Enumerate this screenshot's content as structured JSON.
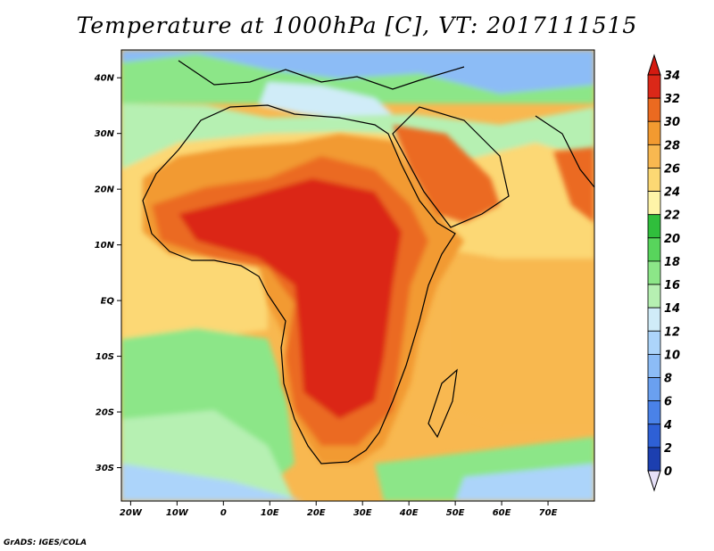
{
  "title": "Temperature at 1000hPa [C], VT: 2017111515",
  "footer": "GrADS: IGES/COLA",
  "map": {
    "lon_range": [
      -22,
      80
    ],
    "lat_range": [
      -36,
      45
    ],
    "lat_ticks": [
      {
        "value": 40,
        "label": "40N"
      },
      {
        "value": 30,
        "label": "30N"
      },
      {
        "value": 20,
        "label": "20N"
      },
      {
        "value": 10,
        "label": "10N"
      },
      {
        "value": 0,
        "label": "EQ"
      },
      {
        "value": -10,
        "label": "10S"
      },
      {
        "value": -20,
        "label": "20S"
      },
      {
        "value": -30,
        "label": "30S"
      }
    ],
    "lon_ticks": [
      {
        "value": -20,
        "label": "20W"
      },
      {
        "value": -10,
        "label": "10W"
      },
      {
        "value": 0,
        "label": "0"
      },
      {
        "value": 10,
        "label": "10E"
      },
      {
        "value": 20,
        "label": "20E"
      },
      {
        "value": 30,
        "label": "30E"
      },
      {
        "value": 40,
        "label": "40E"
      },
      {
        "value": 50,
        "label": "50E"
      },
      {
        "value": 60,
        "label": "60E"
      },
      {
        "value": 70,
        "label": "70E"
      }
    ]
  },
  "colorbar": {
    "levels": [
      {
        "label": "0",
        "color": "#0a0a78"
      },
      {
        "label": "2",
        "color": "#1c3fb0"
      },
      {
        "label": "4",
        "color": "#2e60d6"
      },
      {
        "label": "6",
        "color": "#4a82e8"
      },
      {
        "label": "8",
        "color": "#6aa0f0"
      },
      {
        "label": "10",
        "color": "#8cbcf6"
      },
      {
        "label": "12",
        "color": "#acd4fa"
      },
      {
        "label": "14",
        "color": "#d0ecf8"
      },
      {
        "label": "16",
        "color": "#b6f0b2"
      },
      {
        "label": "18",
        "color": "#8ce688"
      },
      {
        "label": "20",
        "color": "#58d45c"
      },
      {
        "label": "22",
        "color": "#30be3c"
      },
      {
        "label": "24",
        "color": "#fef4a8"
      },
      {
        "label": "26",
        "color": "#fcd874"
      },
      {
        "label": "28",
        "color": "#f8b850"
      },
      {
        "label": "30",
        "color": "#f29a30"
      },
      {
        "label": "32",
        "color": "#eb6a20"
      },
      {
        "label": "34",
        "color": "#db2818"
      }
    ],
    "top_color": "#d41a10",
    "bottom_color": "#e6e0f8"
  },
  "colors": {
    "ocean_tropical": "#f8b850",
    "ocean_subtropical": "#fcd874",
    "atlantic_south": "#8ce688",
    "atlantic_cool": "#b6f0b2",
    "far_south": "#acd4fa",
    "med": "#d0ecf8",
    "europe": "#8cbcf6",
    "land_hot": "#db2818",
    "land_warm": "#eb6a20",
    "land_mild": "#f29a30",
    "coast": "#000000"
  }
}
